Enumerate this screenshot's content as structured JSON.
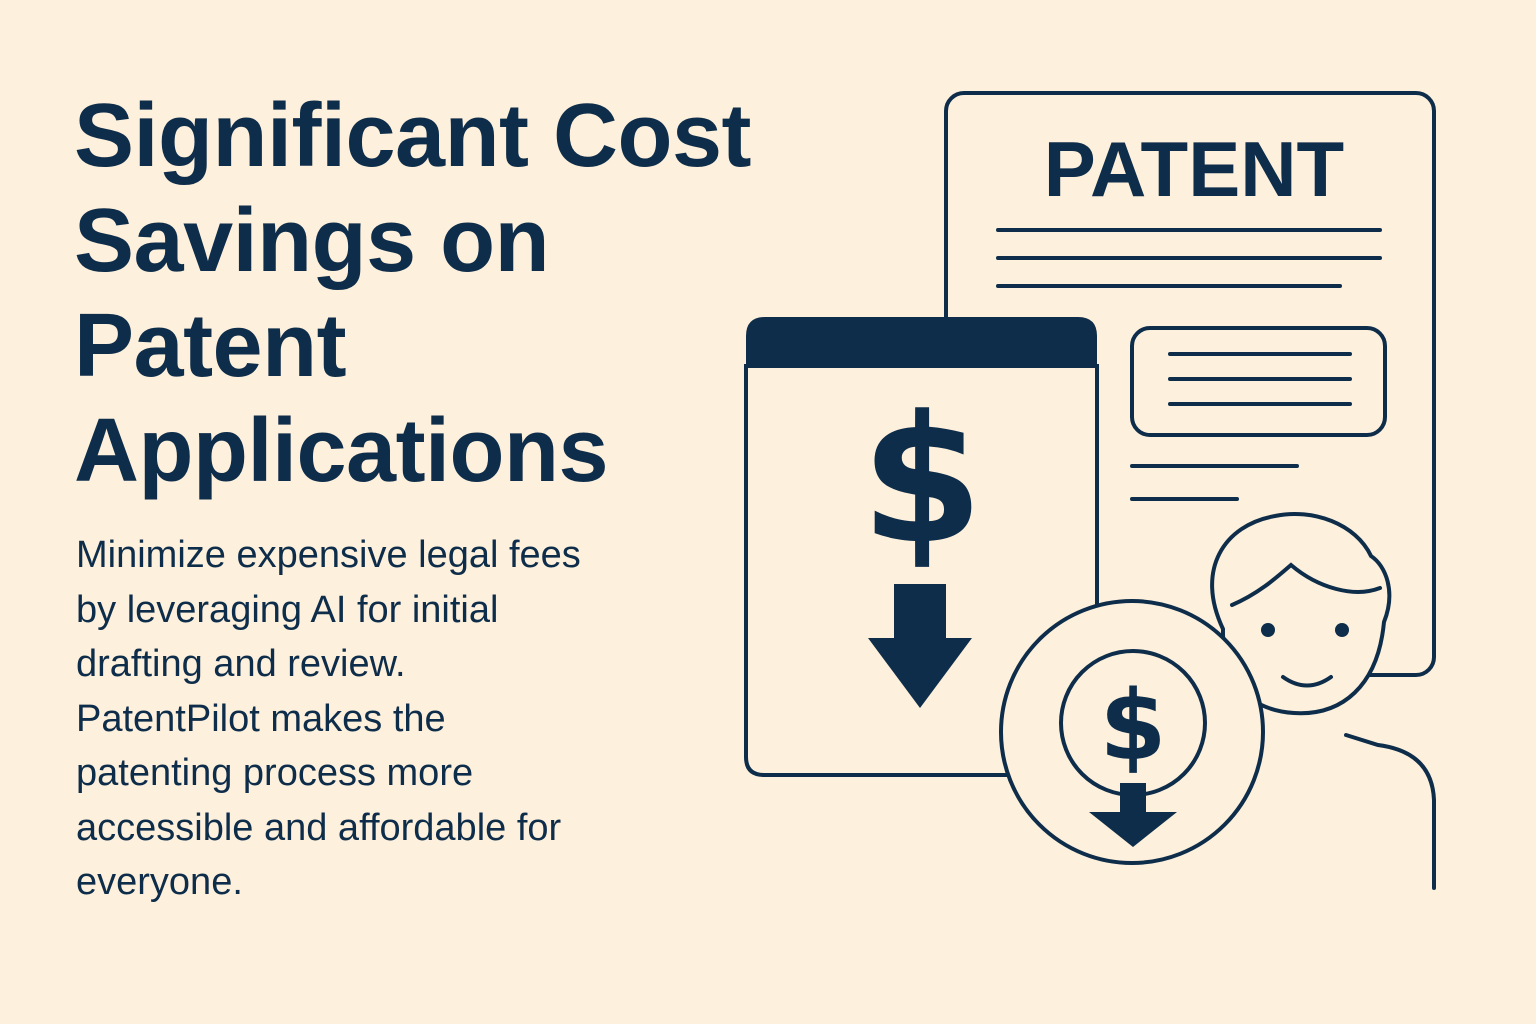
{
  "headline": {
    "line1": "Significant Cost",
    "line2": "Savings on",
    "line3": "Patent",
    "line4": "Applications"
  },
  "body": {
    "line1": "Minimize expensive legal fees",
    "line2": "by leveraging AI for initial",
    "line3": "drafting and review.",
    "line4": "PatentPilot makes the",
    "line5": "patenting process more",
    "line6": "accessible and affordable for",
    "line7": "everyone."
  },
  "illustration": {
    "patent_label": "PATENT",
    "dollar_symbol": "$",
    "icons": [
      "patent-document-icon",
      "cost-panel-icon",
      "dollar-coin-icon",
      "down-arrow-icon",
      "person-icon"
    ]
  },
  "colors": {
    "background": "#fdf0dc",
    "ink": "#0e2d4a"
  }
}
